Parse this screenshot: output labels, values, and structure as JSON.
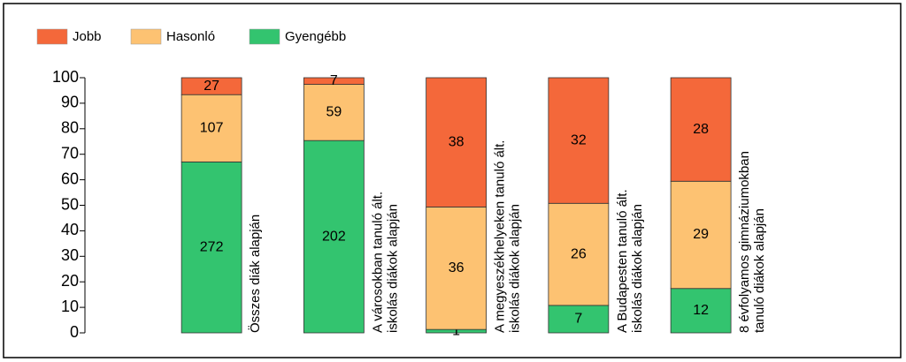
{
  "chart_data": {
    "type": "bar",
    "stack": "percent",
    "categories": [
      [
        "Összes diák alapján"
      ],
      [
        "A városokban tanuló ált.",
        "iskolás diákok alapján"
      ],
      [
        "A megyeszékhelyeken tanuló ált.",
        "iskolás diákok alapján"
      ],
      [
        "A Budapesten tanuló ált.",
        "iskolás diákok alapján"
      ],
      [
        "8 évfolyamos gimnáziumokban",
        "tanuló diákok alapján"
      ]
    ],
    "series": [
      {
        "name": "Jobb",
        "color": "#f4683a",
        "values": [
          27,
          7,
          38,
          32,
          28
        ]
      },
      {
        "name": "Hasonló",
        "color": "#fdc272",
        "values": [
          107,
          59,
          36,
          26,
          29
        ]
      },
      {
        "name": "Gyengébb",
        "color": "#33c46f",
        "values": [
          272,
          202,
          1,
          7,
          12
        ]
      }
    ],
    "ylim": [
      0,
      100
    ],
    "yticks": [
      0,
      10,
      20,
      30,
      40,
      50,
      60,
      70,
      80,
      90,
      100
    ],
    "legend": "top-left"
  }
}
